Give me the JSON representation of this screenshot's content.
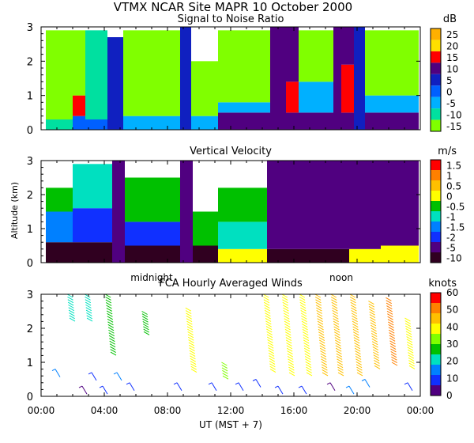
{
  "figure": {
    "title": "VTMX  NCAR Site  MAPR 10 October 2000",
    "xlabel": "UT  (MST + 7)",
    "ylabel": "Altitude (km)",
    "x_ticks": [
      "00:00",
      "04:00",
      "08:00",
      "12:00",
      "16:00",
      "20:00",
      "00:00"
    ],
    "annotations": [
      {
        "text": "midnight",
        "x_hour": 7.0
      },
      {
        "text": "noon",
        "x_hour": 19.0
      }
    ]
  },
  "chart_data": [
    {
      "type": "heatmap",
      "title": "Signal to Noise Ratio",
      "units": "dB",
      "xlim": [
        0,
        24
      ],
      "ylim": [
        0,
        3
      ],
      "y_ticks": [
        "0",
        "1",
        "2",
        "3"
      ],
      "colorbar": {
        "labels": [
          "25",
          "20",
          "15",
          "10",
          "5",
          "0",
          "-5",
          "-10",
          "-15"
        ],
        "colors": [
          "#ffb000",
          "#ffe000",
          "#ff0000",
          "#500080",
          "#1020c0",
          "#0060ff",
          "#00b0ff",
          "#00e0a0",
          "#80ff00"
        ]
      },
      "columns": [
        {
          "x0": 0.3,
          "x1": 2.0,
          "layers": [
            {
              "z0": 0,
              "z1": 0.3,
              "c": "#00e0a0"
            },
            {
              "z0": 0.3,
              "z1": 2.9,
              "c": "#80ff00"
            }
          ]
        },
        {
          "x0": 2.0,
          "x1": 2.8,
          "layers": [
            {
              "z0": 0,
              "z1": 0.4,
              "c": "#0060ff"
            },
            {
              "z0": 0.4,
              "z1": 1.0,
              "c": "#ff0000"
            },
            {
              "z0": 1.0,
              "z1": 2.9,
              "c": "#80ff00"
            }
          ]
        },
        {
          "x0": 2.8,
          "x1": 4.2,
          "layers": [
            {
              "z0": 0,
              "z1": 0.3,
              "c": "#0060ff"
            },
            {
              "z0": 0.3,
              "z1": 2.9,
              "c": "#00e0a0"
            }
          ]
        },
        {
          "x0": 4.2,
          "x1": 5.2,
          "layers": [
            {
              "z0": 0,
              "z1": 2.7,
              "c": "#1020c0"
            }
          ]
        },
        {
          "x0": 5.2,
          "x1": 8.8,
          "layers": [
            {
              "z0": 0,
              "z1": 0.4,
              "c": "#00b0ff"
            },
            {
              "z0": 0.4,
              "z1": 2.9,
              "c": "#80ff00"
            }
          ]
        },
        {
          "x0": 8.8,
          "x1": 9.5,
          "layers": [
            {
              "z0": 0,
              "z1": 3.0,
              "c": "#1020c0"
            }
          ]
        },
        {
          "x0": 9.5,
          "x1": 11.2,
          "layers": [
            {
              "z0": 0,
              "z1": 0.4,
              "c": "#00b0ff"
            },
            {
              "z0": 0.4,
              "z1": 2.0,
              "c": "#80ff00"
            }
          ]
        },
        {
          "x0": 11.2,
          "x1": 14.5,
          "layers": [
            {
              "z0": 0,
              "z1": 0.5,
              "c": "#500080"
            },
            {
              "z0": 0.5,
              "z1": 0.8,
              "c": "#00b0ff"
            },
            {
              "z0": 0.8,
              "z1": 2.9,
              "c": "#80ff00"
            }
          ]
        },
        {
          "x0": 14.5,
          "x1": 15.5,
          "layers": [
            {
              "z0": 0,
              "z1": 3.0,
              "c": "#500080"
            }
          ]
        },
        {
          "x0": 15.5,
          "x1": 16.3,
          "layers": [
            {
              "z0": 0,
              "z1": 0.5,
              "c": "#500080"
            },
            {
              "z0": 0.5,
              "z1": 1.4,
              "c": "#ff0000"
            },
            {
              "z0": 1.4,
              "z1": 3.0,
              "c": "#500080"
            }
          ]
        },
        {
          "x0": 16.3,
          "x1": 18.5,
          "layers": [
            {
              "z0": 0,
              "z1": 0.5,
              "c": "#500080"
            },
            {
              "z0": 0.5,
              "z1": 1.4,
              "c": "#00b0ff"
            },
            {
              "z0": 1.4,
              "z1": 2.9,
              "c": "#80ff00"
            }
          ]
        },
        {
          "x0": 18.5,
          "x1": 19.0,
          "layers": [
            {
              "z0": 0,
              "z1": 3.0,
              "c": "#500080"
            }
          ]
        },
        {
          "x0": 19.0,
          "x1": 19.8,
          "layers": [
            {
              "z0": 0,
              "z1": 0.5,
              "c": "#500080"
            },
            {
              "z0": 0.5,
              "z1": 1.9,
              "c": "#ff0000"
            },
            {
              "z0": 1.9,
              "z1": 3.0,
              "c": "#500080"
            }
          ]
        },
        {
          "x0": 19.8,
          "x1": 20.5,
          "layers": [
            {
              "z0": 0,
              "z1": 3.0,
              "c": "#1020c0"
            }
          ]
        },
        {
          "x0": 20.5,
          "x1": 23.9,
          "layers": [
            {
              "z0": 0,
              "z1": 0.5,
              "c": "#500080"
            },
            {
              "z0": 0.5,
              "z1": 1.0,
              "c": "#00b0ff"
            },
            {
              "z0": 1.0,
              "z1": 2.9,
              "c": "#80ff00"
            }
          ]
        }
      ]
    },
    {
      "type": "heatmap",
      "title": "Vertical Velocity",
      "units": "m/s",
      "xlim": [
        0,
        24
      ],
      "ylim": [
        0,
        3
      ],
      "y_ticks": [
        "0",
        "1",
        "2",
        "3"
      ],
      "colorbar": {
        "labels": [
          "1.5",
          "1",
          "0.5",
          "0",
          "-0.5",
          "-1",
          "-1.5",
          "-2",
          "-5",
          "-10"
        ],
        "colors": [
          "#ff0000",
          "#ff8000",
          "#ffc000",
          "#ffff00",
          "#00c000",
          "#00e0c0",
          "#0080ff",
          "#1030ff",
          "#500080",
          "#300020"
        ]
      },
      "columns": [
        {
          "x0": 0.3,
          "x1": 2.0,
          "layers": [
            {
              "z0": 0,
              "z1": 0.6,
              "c": "#300020"
            },
            {
              "z0": 0.6,
              "z1": 1.5,
              "c": "#0080ff"
            },
            {
              "z0": 1.5,
              "z1": 2.2,
              "c": "#00c000"
            }
          ]
        },
        {
          "x0": 2.0,
          "x1": 4.5,
          "layers": [
            {
              "z0": 0,
              "z1": 0.6,
              "c": "#300020"
            },
            {
              "z0": 0.6,
              "z1": 1.6,
              "c": "#1030ff"
            },
            {
              "z0": 1.6,
              "z1": 2.9,
              "c": "#00e0c0"
            }
          ]
        },
        {
          "x0": 4.5,
          "x1": 5.3,
          "layers": [
            {
              "z0": 0,
              "z1": 3.0,
              "c": "#500080"
            }
          ]
        },
        {
          "x0": 5.3,
          "x1": 8.8,
          "layers": [
            {
              "z0": 0,
              "z1": 0.5,
              "c": "#300020"
            },
            {
              "z0": 0.5,
              "z1": 1.2,
              "c": "#1030ff"
            },
            {
              "z0": 1.2,
              "z1": 2.5,
              "c": "#00c000"
            }
          ]
        },
        {
          "x0": 8.8,
          "x1": 9.6,
          "layers": [
            {
              "z0": 0,
              "z1": 3.0,
              "c": "#500080"
            }
          ]
        },
        {
          "x0": 9.6,
          "x1": 11.2,
          "layers": [
            {
              "z0": 0,
              "z1": 0.5,
              "c": "#300020"
            },
            {
              "z0": 0.5,
              "z1": 1.5,
              "c": "#00c000"
            }
          ]
        },
        {
          "x0": 11.2,
          "x1": 14.3,
          "layers": [
            {
              "z0": 0,
              "z1": 0.4,
              "c": "#ffff00"
            },
            {
              "z0": 0.4,
              "z1": 1.2,
              "c": "#00e0c0"
            },
            {
              "z0": 1.2,
              "z1": 2.2,
              "c": "#00c000"
            }
          ]
        },
        {
          "x0": 14.3,
          "x1": 19.5,
          "layers": [
            {
              "z0": 0,
              "z1": 0.4,
              "c": "#300020"
            },
            {
              "z0": 0.4,
              "z1": 3.0,
              "c": "#500080"
            }
          ]
        },
        {
          "x0": 19.5,
          "x1": 21.5,
          "layers": [
            {
              "z0": 0,
              "z1": 0.4,
              "c": "#ffff00"
            },
            {
              "z0": 0.4,
              "z1": 3.0,
              "c": "#500080"
            }
          ]
        },
        {
          "x0": 21.5,
          "x1": 23.9,
          "layers": [
            {
              "z0": 0,
              "z1": 0.5,
              "c": "#ffff00"
            },
            {
              "z0": 0.5,
              "z1": 3.0,
              "c": "#500080"
            }
          ]
        }
      ]
    },
    {
      "type": "scatter",
      "title": "FCA Hourly Averaged Winds",
      "units": "knots",
      "xlim": [
        0,
        24
      ],
      "ylim": [
        0,
        3
      ],
      "y_ticks": [
        "0",
        "1",
        "2",
        "3"
      ],
      "colorbar": {
        "labels": [
          "60",
          "50",
          "40",
          "30",
          "20",
          "10",
          "0"
        ],
        "colors": [
          "#ff0000",
          "#ff8000",
          "#ffc000",
          "#ffff00",
          "#80ff00",
          "#00c000",
          "#00e0c0",
          "#0080ff",
          "#1030ff",
          "#500080"
        ],
        "bin_edges": [
          0,
          6,
          12,
          18,
          24,
          30,
          36,
          42,
          48,
          54,
          60
        ]
      },
      "profiles": [
        {
          "hour": 1.8,
          "alt_min": 2.3,
          "alt_max": 3.0,
          "speed": 20
        },
        {
          "hour": 2.9,
          "alt_min": 2.3,
          "alt_max": 3.0,
          "speed": 21
        },
        {
          "hour": 4.4,
          "alt_min": 1.3,
          "alt_max": 3.0,
          "speed": 28
        },
        {
          "hour": 6.5,
          "alt_min": 1.9,
          "alt_max": 2.5,
          "speed": 27
        },
        {
          "hour": 9.5,
          "alt_min": 0.8,
          "alt_max": 2.6,
          "speed": 38
        },
        {
          "hour": 11.5,
          "alt_min": 0.6,
          "alt_max": 1.0,
          "speed": 30
        },
        {
          "hour": 14.5,
          "alt_min": 0.8,
          "alt_max": 3.0,
          "speed": 38
        },
        {
          "hour": 15.7,
          "alt_min": 0.7,
          "alt_max": 3.0,
          "speed": 40
        },
        {
          "hour": 16.8,
          "alt_min": 0.7,
          "alt_max": 3.0,
          "speed": 38
        },
        {
          "hour": 17.8,
          "alt_min": 0.7,
          "alt_max": 3.0,
          "speed": 44
        },
        {
          "hour": 18.8,
          "alt_min": 0.7,
          "alt_max": 3.0,
          "speed": 46
        },
        {
          "hour": 20.0,
          "alt_min": 0.7,
          "alt_max": 3.0,
          "speed": 42
        },
        {
          "hour": 21.1,
          "alt_min": 0.9,
          "alt_max": 2.8,
          "speed": 46
        },
        {
          "hour": 22.2,
          "alt_min": 1.0,
          "alt_max": 2.9,
          "speed": 48
        },
        {
          "hour": 23.3,
          "alt_min": 0.9,
          "alt_max": 2.3,
          "speed": 40
        }
      ],
      "low_level_barbs": [
        {
          "hour": 0.9,
          "alt": 0.8,
          "speed": 12
        },
        {
          "hour": 2.6,
          "alt": 0.3,
          "speed": 5
        },
        {
          "hour": 3.2,
          "alt": 0.7,
          "speed": 10
        },
        {
          "hour": 3.9,
          "alt": 0.3,
          "speed": 6
        },
        {
          "hour": 4.8,
          "alt": 0.7,
          "speed": 15
        },
        {
          "hour": 5.6,
          "alt": 0.4,
          "speed": 8
        },
        {
          "hour": 8.6,
          "alt": 0.4,
          "speed": 7
        },
        {
          "hour": 10.8,
          "alt": 0.4,
          "speed": 10
        },
        {
          "hour": 12.5,
          "alt": 0.4,
          "speed": 6
        },
        {
          "hour": 13.6,
          "alt": 0.5,
          "speed": 8
        },
        {
          "hour": 15.0,
          "alt": 0.3,
          "speed": 10
        },
        {
          "hour": 16.5,
          "alt": 0.3,
          "speed": 6
        },
        {
          "hour": 18.3,
          "alt": 0.4,
          "speed": 5
        },
        {
          "hour": 19.5,
          "alt": 0.3,
          "speed": 12
        },
        {
          "hour": 20.5,
          "alt": 0.5,
          "speed": 14
        },
        {
          "hour": 23.2,
          "alt": 0.4,
          "speed": 8
        }
      ]
    }
  ]
}
